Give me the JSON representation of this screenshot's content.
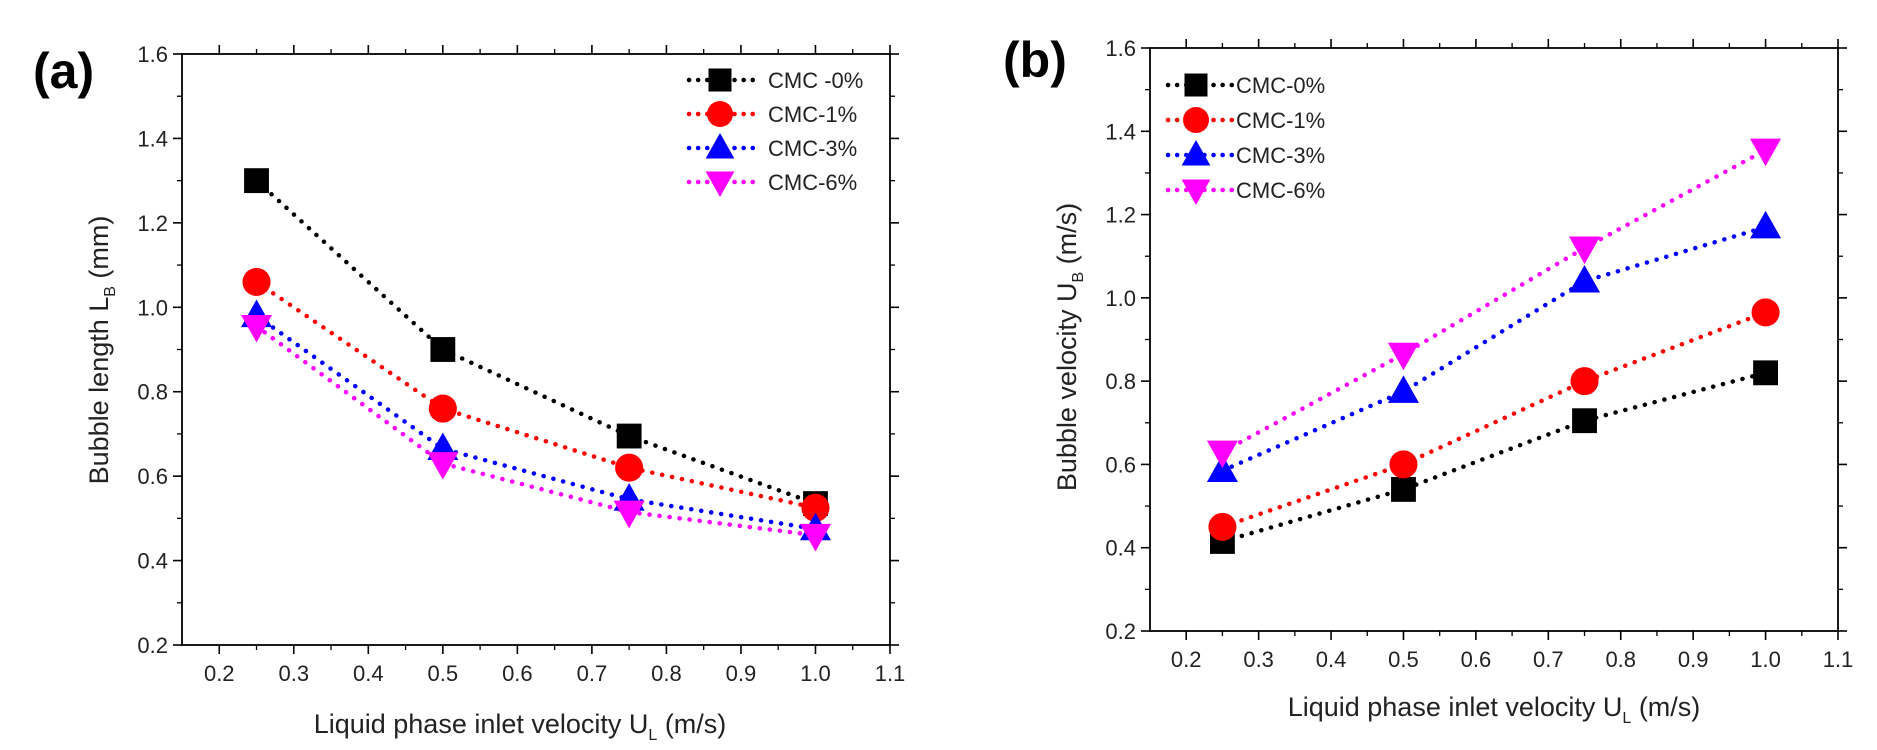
{
  "chart_data": [
    {
      "type": "scatter",
      "panel_label": "(a)",
      "xlabel": "Liquid phase inlet velocity U",
      "xlabel_sub": "L",
      "xlabel_unit": " (m/s)",
      "ylabel": "Bubble length L",
      "ylabel_sub": "B",
      "ylabel_unit": " (mm)",
      "xlim": [
        0.15,
        1.1
      ],
      "ylim": [
        0.2,
        1.6
      ],
      "xticks": [
        "0.2",
        "0.3",
        "0.4",
        "0.5",
        "0.6",
        "0.7",
        "0.8",
        "0.9",
        "1.0",
        "1.1"
      ],
      "yticks": [
        "0.2",
        "0.4",
        "0.6",
        "0.8",
        "1.0",
        "1.2",
        "1.4",
        "1.6"
      ],
      "legend_position": "top-right",
      "x": [
        0.25,
        0.5,
        0.75,
        1.0
      ],
      "series": [
        {
          "name": "CMC -0%",
          "marker": "square",
          "color": "#000000",
          "values": [
            1.3,
            0.9,
            0.695,
            0.535
          ]
        },
        {
          "name": "CMC-1%",
          "marker": "circle",
          "color": "#ff0000",
          "values": [
            1.06,
            0.76,
            0.62,
            0.525
          ]
        },
        {
          "name": "CMC-3%",
          "marker": "triangle-up",
          "color": "#0000ff",
          "values": [
            0.98,
            0.665,
            0.545,
            0.475
          ]
        },
        {
          "name": "CMC-6%",
          "marker": "triangle-down",
          "color": "#ff00ff",
          "values": [
            0.955,
            0.63,
            0.515,
            0.46
          ]
        }
      ]
    },
    {
      "type": "scatter",
      "panel_label": "(b)",
      "xlabel": "Liquid phase inlet velocity U",
      "xlabel_sub": "L",
      "xlabel_unit": " (m/s)",
      "ylabel": "Bubble velocity U",
      "ylabel_sub": "B",
      "ylabel_unit": " (m/s)",
      "xlim": [
        0.15,
        1.1
      ],
      "ylim": [
        0.2,
        1.6
      ],
      "xticks": [
        "0.2",
        "0.3",
        "0.4",
        "0.5",
        "0.6",
        "0.7",
        "0.8",
        "0.9",
        "1.0",
        "1.1"
      ],
      "yticks": [
        "0.2",
        "0.4",
        "0.6",
        "0.8",
        "1.0",
        "1.2",
        "1.4",
        "1.6"
      ],
      "legend_position": "top-left",
      "x": [
        0.25,
        0.5,
        0.75,
        1.0
      ],
      "series": [
        {
          "name": "CMC-0%",
          "marker": "square",
          "color": "#000000",
          "values": [
            0.415,
            0.54,
            0.705,
            0.82
          ]
        },
        {
          "name": "CMC-1%",
          "marker": "circle",
          "color": "#ff0000",
          "values": [
            0.45,
            0.6,
            0.8,
            0.965
          ]
        },
        {
          "name": "CMC-3%",
          "marker": "triangle-up",
          "color": "#0000ff",
          "values": [
            0.585,
            0.775,
            1.04,
            1.17
          ]
        },
        {
          "name": "CMC-6%",
          "marker": "triangle-down",
          "color": "#ff00ff",
          "values": [
            0.63,
            0.865,
            1.12,
            1.355
          ]
        }
      ]
    }
  ]
}
